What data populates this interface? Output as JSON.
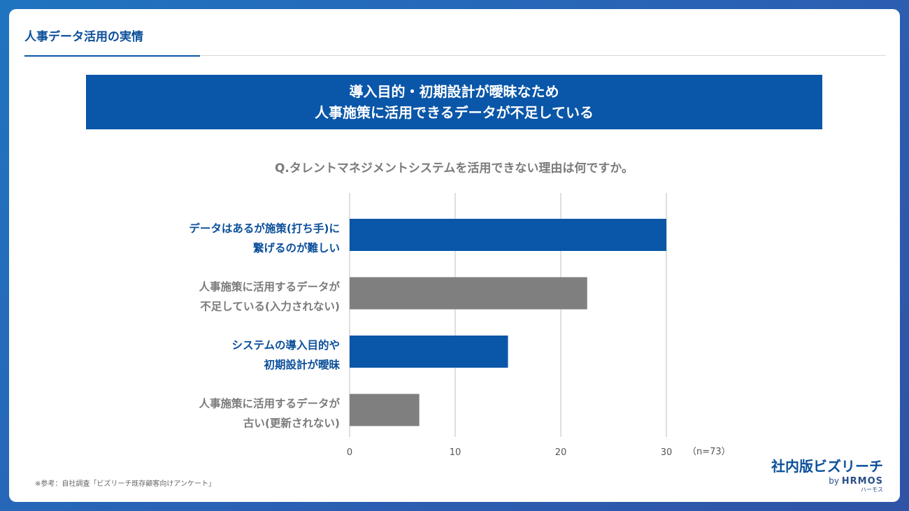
{
  "header": {
    "title": "人事データ活用の実情"
  },
  "banner": {
    "line1": "導入目的・初期設計が曖昧なため",
    "line2": "人事施策に活用できるデータが不足している"
  },
  "chart_data": {
    "type": "bar",
    "orientation": "horizontal",
    "title": "Q.タレントマネジメントシステムを活用できない理由は何ですか。",
    "categories": [
      [
        "データはあるが施策(打ち手)に",
        "繋げるのが難しい"
      ],
      [
        "人事施策に活用するデータが",
        "不足している(入力されない)"
      ],
      [
        "システムの導入目的や",
        "初期設計が曖昧"
      ],
      [
        "人事施策に活用するデータが",
        "古い(更新されない)"
      ]
    ],
    "values": [
      30,
      22.5,
      15,
      6.6
    ],
    "colors": [
      "#0a56a8",
      "#7f7f7f",
      "#0a56a8",
      "#7f7f7f"
    ],
    "label_colors": [
      "#0b4f9a",
      "#7b7b7b",
      "#0b4f9a",
      "#7b7b7b"
    ],
    "xlim": [
      0,
      30
    ],
    "xticks": [
      0,
      10,
      20,
      30
    ],
    "grid": true,
    "annotation": "（n=73）"
  },
  "footnote": "※参考：自社調査「ビズリーチ既存顧客向けアンケート」",
  "brand": {
    "name": "社内版ビズリーチ",
    "by": "by",
    "product": "HRMOS",
    "product_kana": "ハーモス"
  },
  "style": {
    "accent": "#0a56a8",
    "bar_gray": "#7f7f7f",
    "grid": "#bfbfbf"
  }
}
